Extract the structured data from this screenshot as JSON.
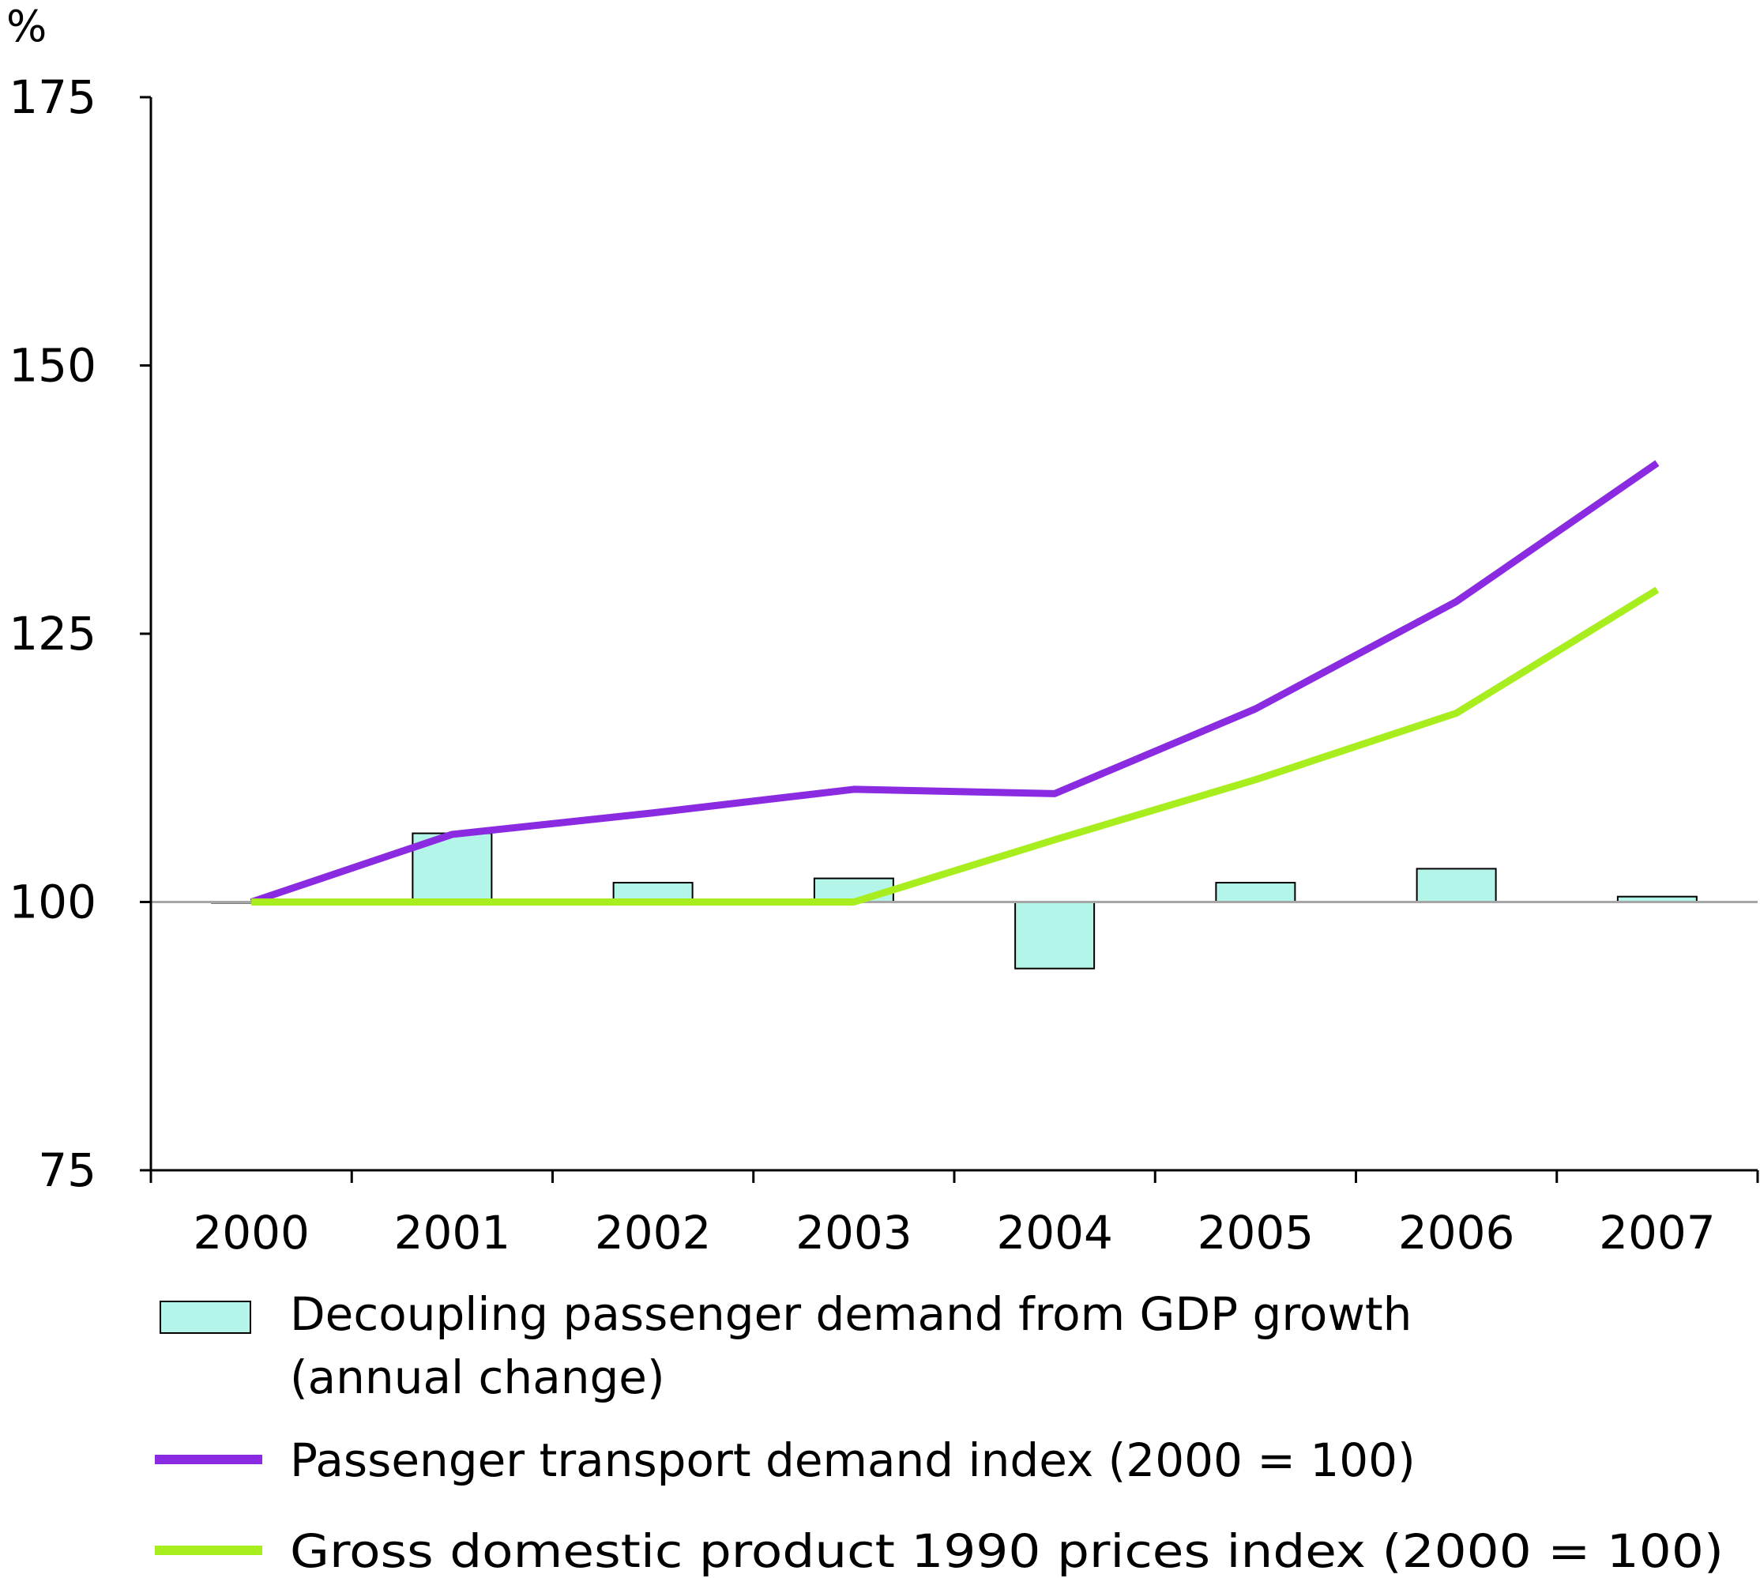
{
  "chart_data": {
    "type": "bar",
    "ylabel": "%",
    "ylim": [
      75,
      175
    ],
    "yticks": [
      75,
      100,
      125,
      150,
      175
    ],
    "categories": [
      "2000",
      "2001",
      "2002",
      "2003",
      "2004",
      "2005",
      "2006",
      "2007"
    ],
    "baseline": 100,
    "bars": {
      "name": "Decoupling passenger demand from GDP growth (annual change)",
      "color": "#b3f5e8",
      "values": [
        100.0,
        106.4,
        101.8,
        102.2,
        93.8,
        101.8,
        103.1,
        100.5
      ]
    },
    "series": [
      {
        "name": "Passenger transport demand index (2000 = 100)",
        "color": "#8a2be2",
        "values": [
          100.0,
          106.3,
          108.3,
          110.5,
          110.1,
          118.0,
          128.0,
          140.9
        ]
      },
      {
        "name": "Gross domestic product 1990 prices index (2000 = 100)",
        "color": "#a8ee1e",
        "values": [
          100.0,
          100.0,
          100.0,
          100.0,
          105.8,
          111.4,
          117.6,
          129.1
        ]
      }
    ],
    "legend_lines": [
      [
        "Decoupling passenger demand from GDP growth",
        "(annual change)"
      ],
      [
        "Passenger transport demand index (2000 = 100)"
      ],
      [
        "Gross domestic product 1990 prices index (2000 = 100)"
      ]
    ],
    "legend_position": "bottom",
    "grid": false
  }
}
